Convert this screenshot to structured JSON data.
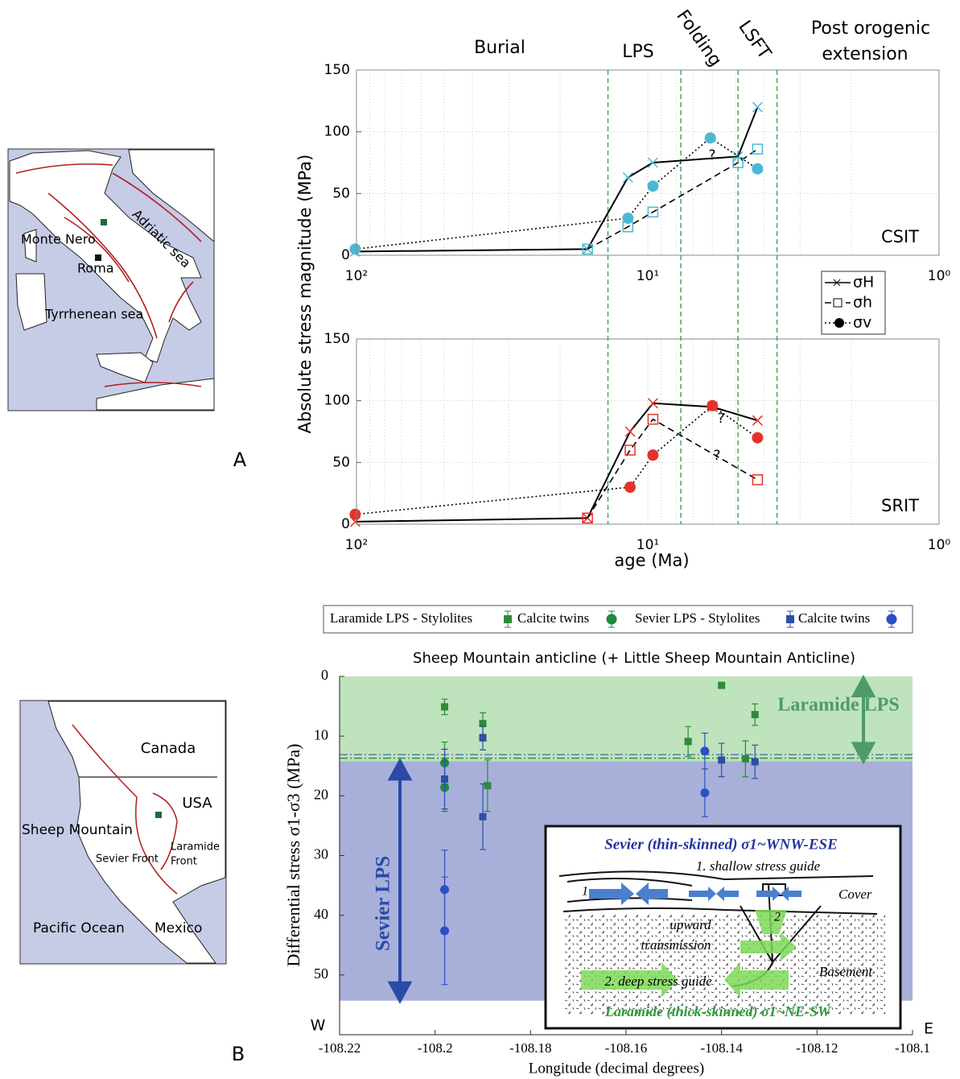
{
  "figure": {
    "label_a": "A",
    "label_b": "B"
  },
  "map_a": {
    "monte_nero": "Monte Nero",
    "roma": "Roma",
    "adriatic": "Adriatic sea",
    "tyrrhenean": "Tyrrhenean sea"
  },
  "map_b": {
    "canada": "Canada",
    "usa": "USA",
    "sheep": "Sheep Mountain",
    "sevier": "Sevier Front",
    "laramide_1": "Laramide",
    "laramide_2": "Front",
    "pacific": "Pacific Ocean",
    "mexico": "Mexico"
  },
  "inset": {
    "title_top": "Sevier (thin-skinned) σ1~WNW-ESE",
    "shallow": "1. shallow stress guide",
    "cover": "Cover",
    "upward_1": "upward",
    "upward_2": "transmission",
    "basement": "Basement",
    "deep": "2. deep stress guide",
    "title_bottom": "Laramide (thick-skinned) σ1~NE-SW",
    "n1": "1",
    "n2": "2"
  },
  "chart_data": [
    {
      "type": "line",
      "label": "CSIT",
      "ylabel": "Absolute stress magnitude (MPa)",
      "log_x": true,
      "grid": true,
      "line_color": "#000000",
      "phase_labels": [
        "Burial",
        "LPS",
        "Folding",
        "LSFT",
        "Post orogenic",
        "extension"
      ],
      "phase_boundaries": [
        13.7,
        7.7,
        4.9,
        3.6
      ],
      "boundary_color": "#2fa84f",
      "annotations": [
        "?"
      ],
      "xlim": [
        100,
        1
      ],
      "xticks": [
        {
          "value": 100,
          "label": "10²"
        },
        {
          "value": 10,
          "label": "10¹"
        },
        {
          "value": 1,
          "label": "10⁰"
        }
      ],
      "ylim": [
        0,
        150
      ],
      "yticks": [
        0,
        50,
        100,
        150
      ],
      "series": [
        {
          "name": "σH",
          "line": "solid",
          "marker": "x",
          "color": "#4bb8d6",
          "x": [
            101,
            16.1,
            11.7,
            9.6,
            4.9,
            4.2
          ],
          "values": [
            3,
            5,
            63,
            75,
            80,
            120
          ]
        },
        {
          "name": "σh",
          "line": "dashed",
          "marker": "square",
          "color": "#4bb8d6",
          "x": [
            16.1,
            11.7,
            9.6,
            4.9,
            4.2
          ],
          "values": [
            5,
            23,
            35,
            75,
            86
          ]
        },
        {
          "name": "σv",
          "line": "dotted",
          "marker": "circle",
          "color": "#4bb8d6",
          "x": [
            101,
            11.7,
            9.6,
            6.1,
            4.2
          ],
          "values": [
            5,
            30,
            56,
            95,
            70
          ]
        }
      ]
    },
    {
      "type": "line",
      "label": "SRIT",
      "xlabel": "age (Ma)",
      "log_x": true,
      "grid": true,
      "line_color": "#000000",
      "phase_boundaries": [
        13.7,
        7.7,
        4.9,
        3.6
      ],
      "boundary_color": "#2fa84f",
      "annotations": [
        "?",
        "?"
      ],
      "xlim": [
        100,
        1
      ],
      "xticks": [
        {
          "value": 100,
          "label": "10²"
        },
        {
          "value": 10,
          "label": "10¹"
        },
        {
          "value": 1,
          "label": "10⁰"
        }
      ],
      "ylim": [
        0,
        150
      ],
      "yticks": [
        0,
        50,
        100,
        150
      ],
      "series": [
        {
          "line": "solid",
          "marker": "x",
          "color": "#e8302a",
          "x": [
            101,
            16.1,
            11.5,
            9.6,
            6.0,
            4.2
          ],
          "values": [
            2,
            5,
            75,
            98,
            95,
            84
          ]
        },
        {
          "line": "dashed",
          "marker": "square",
          "color": "#e8302a",
          "x": [
            16.1,
            11.5,
            9.6,
            4.2
          ],
          "values": [
            5,
            60,
            85,
            36
          ]
        },
        {
          "line": "dotted",
          "marker": "circle",
          "color": "#e8302a",
          "x": [
            101,
            11.5,
            9.6,
            6.0,
            4.2
          ],
          "values": [
            8,
            30,
            56,
            96,
            70
          ]
        }
      ]
    },
    {
      "type": "scatter",
      "title": "Sheep Mountain anticline (+ Little Sheep Mountain Anticline)",
      "xlabel": "Longitude (decimal degrees)",
      "ylabel": "Differential stress σ1-σ3 (MPa)",
      "w_label": "W",
      "e_label": "E",
      "xlim": [
        -108.22,
        -108.1
      ],
      "xticks": [
        -108.22,
        -108.2,
        -108.18,
        -108.16,
        -108.14,
        -108.12,
        -108.1
      ],
      "ylim": [
        0,
        60
      ],
      "yticks": [
        0,
        10,
        20,
        30,
        40,
        50
      ],
      "y_inverted": true,
      "bands": [
        {
          "label": "Laramide LPS",
          "from": 0,
          "to": 14.2,
          "color": "#bfe3bd",
          "text_color": "#4f9a6a"
        },
        {
          "label": "Sevier LPS",
          "from": 14.2,
          "to": 54.3,
          "color": "#a8b0da",
          "text_color": "#2b4aa8"
        }
      ],
      "reference_lines": [
        {
          "value": 13.1,
          "color": "#6a7fae"
        },
        {
          "value": 13.7,
          "color": "#2f9a4a"
        }
      ],
      "series": [
        {
          "name": "Laramide LPS - Stylolites",
          "marker": "square",
          "color": "#2e8b3a",
          "x": [
            -108.198,
            -108.19,
            -108.189,
            -108.147,
            -108.14,
            -108.133,
            -108.135
          ],
          "values": [
            5.1,
            7.9,
            18.3,
            10.9,
            1.5,
            6.4,
            13.8
          ],
          "errors": [
            1.3,
            1.8,
            4.3,
            2.5,
            0,
            1.8,
            3
          ]
        },
        {
          "name": "Calcite twins",
          "marker": "circle",
          "color": "#1f8a3c",
          "x": [
            -108.198,
            -108.198
          ],
          "values": [
            14.5,
            18.6
          ],
          "errors": [
            3.5,
            4
          ]
        },
        {
          "name": "Sevier LPS - Stylolites",
          "marker": "square",
          "color": "#2d4fa6",
          "x": [
            -108.198,
            -108.19,
            -108.19,
            -108.14,
            -108.133
          ],
          "values": [
            17.2,
            10.3,
            23.5,
            14,
            14.3
          ],
          "errors": [
            5,
            2,
            5.5,
            2.8,
            2.8
          ]
        },
        {
          "name": "Calcite twins",
          "marker": "circle",
          "color": "#2a50c4",
          "x": [
            -108.1435,
            -108.1435,
            -108.198,
            -108.198
          ],
          "values": [
            12.5,
            19.5,
            35.7,
            42.6
          ],
          "errors": [
            3,
            4,
            6.6,
            9
          ]
        }
      ]
    }
  ]
}
